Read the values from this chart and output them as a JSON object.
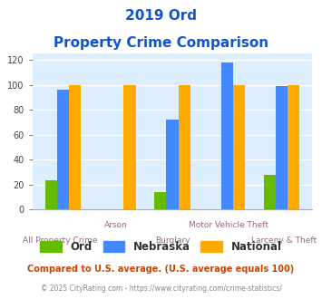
{
  "title_line1": "2019 Ord",
  "title_line2": "Property Crime Comparison",
  "categories": [
    "All Property Crime",
    "Arson",
    "Burglary",
    "Motor Vehicle Theft",
    "Larceny & Theft"
  ],
  "ord_values": [
    23,
    0,
    14,
    0,
    28
  ],
  "nebraska_values": [
    96,
    0,
    72,
    118,
    99
  ],
  "national_values": [
    100,
    100,
    100,
    100,
    100
  ],
  "ord_color": "#66bb00",
  "nebraska_color": "#4488ff",
  "national_color": "#ffaa00",
  "title_color": "#1155cc",
  "axis_label_color": "#996688",
  "plot_bg_color": "#ddeeff",
  "ylim": [
    0,
    125
  ],
  "yticks": [
    0,
    20,
    40,
    60,
    80,
    100,
    120
  ],
  "footnote1": "Compared to U.S. average. (U.S. average equals 100)",
  "footnote2": "© 2025 CityRating.com - https://www.cityrating.com/crime-statistics/",
  "footnote1_color": "#cc4400",
  "footnote2_color": "#888888",
  "legend_labels": [
    "Ord",
    "Nebraska",
    "National"
  ],
  "labels_row1": [
    "",
    "Arson",
    "",
    "Motor Vehicle Theft",
    ""
  ],
  "labels_row2": [
    "All Property Crime",
    "",
    "Burglary",
    "",
    "Larceny & Theft"
  ]
}
